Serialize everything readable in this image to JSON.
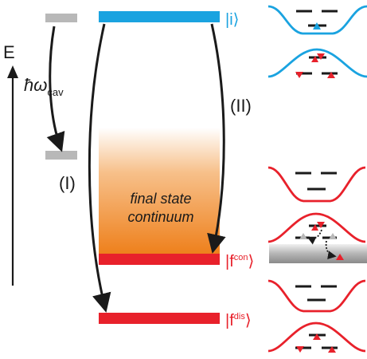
{
  "energy_axis": {
    "label": "E"
  },
  "cavity": {
    "label_main": "ħω",
    "label_sub": "cav"
  },
  "levels": {
    "initial": {
      "label_prefix": "|i",
      "label_close": "⟩",
      "color": "#1aa3e0"
    },
    "continuum": {
      "text_line1": "final state",
      "text_line2": "continuum",
      "color_top": "#ffffff",
      "color_bottom": "#ee7f1a"
    },
    "final_con": {
      "label_prefix": "|f",
      "label_sup": "con",
      "label_close": "⟩",
      "color": "#e8212b"
    },
    "final_dis": {
      "label_prefix": "|f",
      "label_sup": "dis",
      "label_close": "⟩",
      "color": "#e8212b"
    }
  },
  "pathways": {
    "path_1_label": "(I)",
    "path_2_label": "(II)"
  },
  "colors": {
    "blue": "#1aa3e0",
    "red": "#e8212b",
    "gray": "#b8b8b8",
    "black": "#1a1a1a"
  }
}
